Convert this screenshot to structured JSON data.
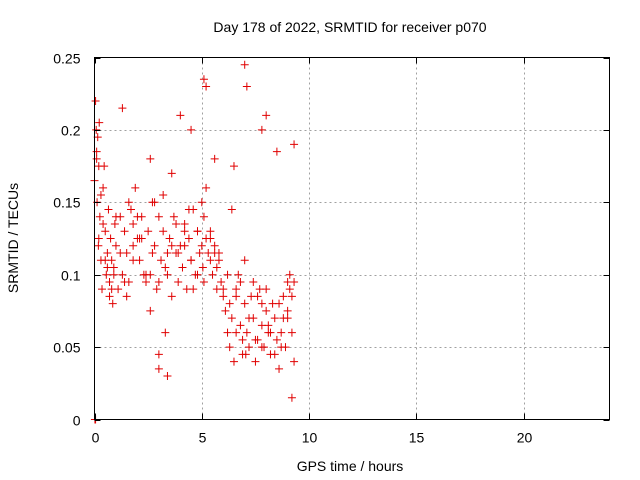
{
  "chart_data": {
    "type": "scatter",
    "title": "Day 178 of 2022, SRMTID for receiver p070",
    "xlabel": "GPS time / hours",
    "ylabel": "SRMTID / TECUs",
    "xlim": [
      0,
      24
    ],
    "ylim": [
      0,
      0.25
    ],
    "xticks": [
      0,
      5,
      10,
      15,
      20
    ],
    "xtick_labels": [
      "0",
      "5",
      "10",
      "15",
      "20"
    ],
    "yticks": [
      0,
      0.05,
      0.1,
      0.15,
      0.2,
      0.25
    ],
    "ytick_labels": [
      "0",
      "0.05",
      "0.1",
      "0.15",
      "0.2",
      "0.25"
    ],
    "grid": true,
    "marker": "+",
    "series": [
      {
        "name": "SRMTID",
        "color": "#e00000",
        "x": [
          0.0,
          0.05,
          0.08,
          0.1,
          0.12,
          0.15,
          0.18,
          0.2,
          0.22,
          0.25,
          0.3,
          0.35,
          0.4,
          0.45,
          0.5,
          0.55,
          0.6,
          0.65,
          0.7,
          0.75,
          0.8,
          0.85,
          0.9,
          0.95,
          1.0,
          1.1,
          1.2,
          1.3,
          1.4,
          1.5,
          1.6,
          1.7,
          1.8,
          1.9,
          2.0,
          2.1,
          2.2,
          2.3,
          2.4,
          2.5,
          2.6,
          2.7,
          2.8,
          2.9,
          3.0,
          3.1,
          3.2,
          3.3,
          3.4,
          3.5,
          3.6,
          3.7,
          3.8,
          3.9,
          4.0,
          4.1,
          4.2,
          4.3,
          4.4,
          4.5,
          4.6,
          4.7,
          4.8,
          4.9,
          5.0,
          5.05,
          5.1,
          5.2,
          5.3,
          5.4,
          5.5,
          5.6,
          5.7,
          5.8,
          5.9,
          6.0,
          6.1,
          6.2,
          6.3,
          6.4,
          6.5,
          6.6,
          6.7,
          6.8,
          6.9,
          7.0,
          7.05,
          7.1,
          7.2,
          7.3,
          7.4,
          7.5,
          7.6,
          7.7,
          7.8,
          7.9,
          8.0,
          8.1,
          8.2,
          8.3,
          8.4,
          8.5,
          8.6,
          8.7,
          8.8,
          8.9,
          9.0,
          9.1,
          9.2,
          9.3,
          0.1,
          0.3,
          0.5,
          0.7,
          0.9,
          1.2,
          1.5,
          1.8,
          2.1,
          2.4,
          2.7,
          3.0,
          3.3,
          3.6,
          3.9,
          4.2,
          4.5,
          4.8,
          5.1,
          5.4,
          5.7,
          6.0,
          6.3,
          6.6,
          6.9,
          7.2,
          7.5,
          7.8,
          8.1,
          8.4,
          8.7,
          9.0,
          9.2,
          0.2,
          0.6,
          1.0,
          1.4,
          1.8,
          2.2,
          2.6,
          3.0,
          3.4,
          3.8,
          4.2,
          4.6,
          5.0,
          5.4,
          5.8,
          6.2,
          6.6,
          7.0,
          7.4,
          7.8,
          8.2,
          8.6,
          9.0,
          9.3,
          0.4,
          0.8,
          1.6,
          2.0,
          2.8,
          3.2,
          3.6,
          4.4,
          4.8,
          5.2,
          5.6,
          6.4,
          6.8,
          7.6,
          8.0,
          8.8,
          9.1,
          7.0,
          7.1,
          5.1,
          5.2,
          8.0,
          9.3,
          0.02,
          0.05,
          1.3,
          2.6,
          3.0,
          3.4,
          4.0,
          4.5,
          5.6,
          6.5,
          7.8,
          8.5,
          9.2
        ],
        "y": [
          0.165,
          0.22,
          0.2,
          0.18,
          0.15,
          0.195,
          0.12,
          0.175,
          0.205,
          0.14,
          0.11,
          0.09,
          0.16,
          0.175,
          0.13,
          0.1,
          0.115,
          0.145,
          0.095,
          0.125,
          0.11,
          0.08,
          0.105,
          0.135,
          0.12,
          0.09,
          0.115,
          0.1,
          0.13,
          0.085,
          0.095,
          0.145,
          0.12,
          0.16,
          0.125,
          0.11,
          0.14,
          0.1,
          0.095,
          0.13,
          0.075,
          0.115,
          0.15,
          0.09,
          0.045,
          0.11,
          0.13,
          0.06,
          0.1,
          0.125,
          0.085,
          0.14,
          0.115,
          0.095,
          0.12,
          0.105,
          0.135,
          0.09,
          0.125,
          0.11,
          0.145,
          0.1,
          0.13,
          0.115,
          0.12,
          0.105,
          0.095,
          0.125,
          0.115,
          0.13,
          0.1,
          0.12,
          0.09,
          0.11,
          0.095,
          0.085,
          0.075,
          0.06,
          0.05,
          0.07,
          0.04,
          0.09,
          0.1,
          0.065,
          0.055,
          0.08,
          0.045,
          0.06,
          0.05,
          0.085,
          0.07,
          0.04,
          0.055,
          0.09,
          0.065,
          0.05,
          0.075,
          0.06,
          0.045,
          0.08,
          0.07,
          0.055,
          0.035,
          0.06,
          0.085,
          0.05,
          0.07,
          0.09,
          0.06,
          0.04,
          0.185,
          0.155,
          0.11,
          0.085,
          0.1,
          0.14,
          0.115,
          0.135,
          0.125,
          0.1,
          0.15,
          0.14,
          0.105,
          0.12,
          0.115,
          0.13,
          0.11,
          0.1,
          0.14,
          0.11,
          0.105,
          0.09,
          0.08,
          0.06,
          0.045,
          0.07,
          0.055,
          0.05,
          0.065,
          0.045,
          0.05,
          0.075,
          0.085,
          0.125,
          0.105,
          0.14,
          0.095,
          0.11,
          0.125,
          0.1,
          0.095,
          0.115,
          0.135,
          0.12,
          0.09,
          0.15,
          0.125,
          0.115,
          0.1,
          0.085,
          0.11,
          0.095,
          0.08,
          0.06,
          0.08,
          0.095,
          0.095,
          0.135,
          0.09,
          0.15,
          0.14,
          0.12,
          0.155,
          0.17,
          0.145,
          0.13,
          0.16,
          0.115,
          0.145,
          0.095,
          0.085,
          0.09,
          0.07,
          0.1,
          0.245,
          0.23,
          0.235,
          0.23,
          0.21,
          0.19,
          0.0,
          0.0,
          0.215,
          0.18,
          0.035,
          0.03,
          0.21,
          0.2,
          0.18,
          0.175,
          0.2,
          0.185,
          0.015
        ]
      }
    ]
  }
}
